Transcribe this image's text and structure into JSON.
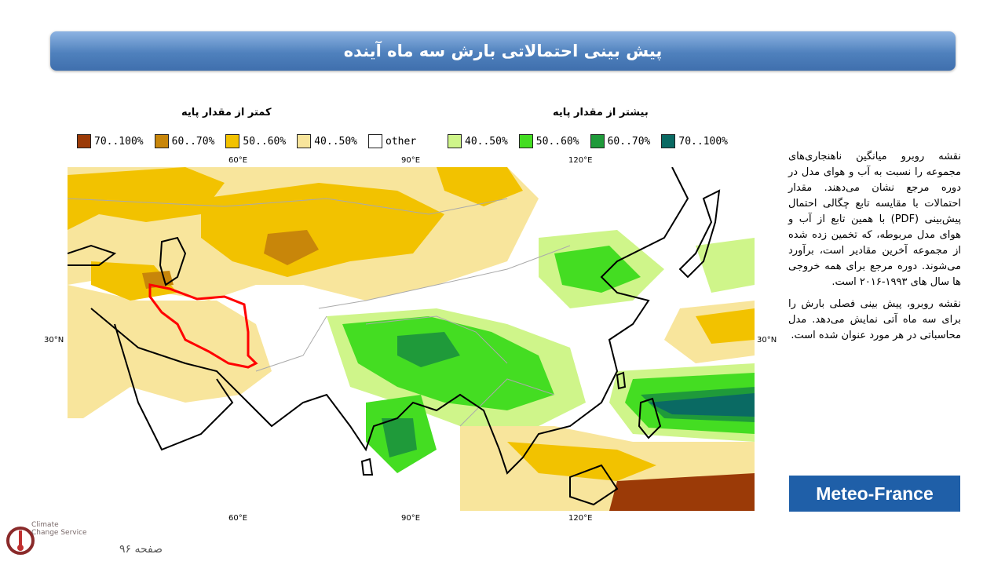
{
  "title": "پیش بینی احتمالاتی بارش سه ماه آینده",
  "legend": {
    "below_heading": "کمتر از مقدار پایه",
    "above_heading": "بیشتر از مقدار پایه",
    "items": [
      {
        "label": "70..100%",
        "color": "#9b3a07"
      },
      {
        "label": "60..70%",
        "color": "#c8860a"
      },
      {
        "label": "50..60%",
        "color": "#f2c200"
      },
      {
        "label": "40..50%",
        "color": "#f8e59c"
      },
      {
        "label": "other",
        "color": "#ffffff"
      },
      {
        "label": "40..50%",
        "color": "#cff58a"
      },
      {
        "label": "50..60%",
        "color": "#44dd22"
      },
      {
        "label": "60..70%",
        "color": "#1f9a3a"
      },
      {
        "label": "70..100%",
        "color": "#0a6a63"
      }
    ]
  },
  "map": {
    "lon_labels": [
      "60°E",
      "90°E",
      "120°E"
    ],
    "lat_label": "30°N",
    "highlight_color": "#ff0000"
  },
  "description": {
    "p1": "نقشه روبرو میانگین ناهنجاری‌های مجموعه را نسبت به آب و هوای مدل در دوره مرجع نشان می‌دهند. مقدار احتمالات با مقایسه تابع چگالی احتمال پیش‌بینی (PDF) با همین تابع از آب و هوای مدل مربوطه، که تخمین زده شده از مجموعه آخرین مقادیر است، برآورد می‌شوند. دوره مرجع برای همه خروجی ها سال های ۱۹۹۳-۲۰۱۶ است.",
    "p2": "نقشه روبرو، پیش بینی فصلی بارش را برای سه ماه آتی نمایش می‌دهد. مدل محاسباتی در هر مورد عنوان شده است."
  },
  "source": "Meteo-France",
  "logo": {
    "line1": "Climate",
    "line2": "Change Service"
  },
  "page_label": "صفحه ۹۶"
}
